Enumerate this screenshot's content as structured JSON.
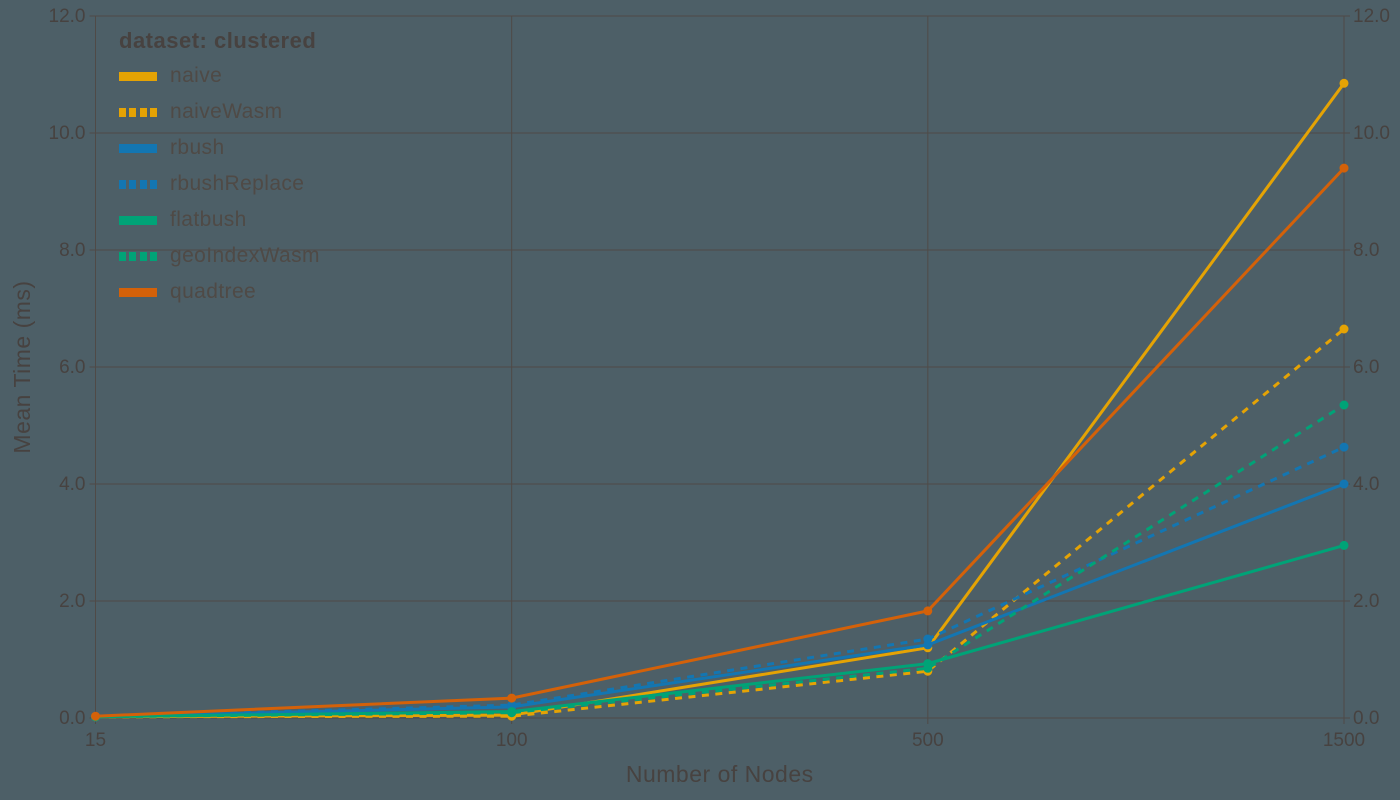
{
  "style": {
    "background": "#4d5f67",
    "text_color": "#474240",
    "grid_color": "#4f4a47",
    "axis_color": "#4f4a47"
  },
  "legend": {
    "title": "dataset: clustered",
    "items": [
      {
        "label": "naive",
        "color": "#e5a304",
        "dashed": false
      },
      {
        "label": "naiveWasm",
        "color": "#e5a304",
        "dashed": true
      },
      {
        "label": "rbush",
        "color": "#1376b2",
        "dashed": false
      },
      {
        "label": "rbushReplace",
        "color": "#1376b2",
        "dashed": true
      },
      {
        "label": "flatbush",
        "color": "#00a377",
        "dashed": false
      },
      {
        "label": "geoIndexWasm",
        "color": "#00a377",
        "dashed": true
      },
      {
        "label": "quadtree",
        "color": "#d46109",
        "dashed": false
      }
    ]
  },
  "chart_data": {
    "type": "line",
    "title": "",
    "xlabel": "Number of Nodes",
    "ylabel": "Mean Time (ms)",
    "categories": [
      "15",
      "100",
      "500",
      "1500"
    ],
    "y_ticks": [
      0,
      2,
      4,
      6,
      8,
      10,
      12
    ],
    "y_tick_labels": [
      "0.0",
      "2.0",
      "4.0",
      "6.0",
      "8.0",
      "10.0",
      "12.0"
    ],
    "ylim": [
      0,
      12
    ],
    "grid": true,
    "legend_position": "top-left-inside",
    "marker": "circle",
    "series": [
      {
        "name": "naive",
        "color": "#e5a304",
        "dashed": false,
        "values": [
          0.02,
          0.05,
          1.2,
          10.85
        ]
      },
      {
        "name": "naiveWasm",
        "color": "#e5a304",
        "dashed": true,
        "values": [
          0.02,
          0.03,
          0.8,
          6.65
        ]
      },
      {
        "name": "rbush",
        "color": "#1376b2",
        "dashed": false,
        "values": [
          0.02,
          0.19,
          1.25,
          4.0
        ]
      },
      {
        "name": "rbushReplace",
        "color": "#1376b2",
        "dashed": true,
        "values": [
          0.02,
          0.22,
          1.35,
          4.63
        ]
      },
      {
        "name": "flatbush",
        "color": "#00a377",
        "dashed": false,
        "values": [
          0.02,
          0.11,
          0.93,
          2.95
        ]
      },
      {
        "name": "geoIndexWasm",
        "color": "#00a377",
        "dashed": true,
        "values": [
          0.02,
          0.09,
          0.85,
          5.35
        ]
      },
      {
        "name": "quadtree",
        "color": "#d46109",
        "dashed": false,
        "values": [
          0.03,
          0.34,
          1.83,
          9.4
        ]
      }
    ]
  }
}
